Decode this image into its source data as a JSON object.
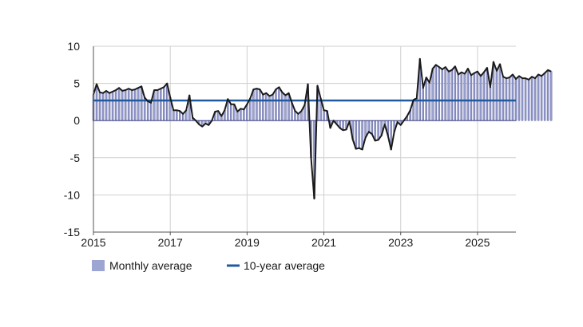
{
  "chart_data": {
    "type": "bar",
    "title": "",
    "xlabel": "",
    "ylabel": "",
    "ylim": [
      -15,
      10
    ],
    "yticks": [
      10,
      5,
      0,
      -5,
      -10,
      -15
    ],
    "xlim": [
      2015.0,
      2026.0
    ],
    "xticks": [
      2015,
      2017,
      2019,
      2021,
      2023,
      2025
    ],
    "grid": "vertical and horizontal light grey gridlines",
    "legend": {
      "placement": "bottom-left",
      "monthly_label": "Monthly average",
      "ten_year_label": "10-year average"
    },
    "colors": {
      "monthly_fill": "#9da5d3",
      "monthly_stroke": "#2a2d7a",
      "monthly_line": "#1a1a1a",
      "ten_year": "#1f5b9e",
      "grid": "#cfcfcf",
      "axis": "#555555"
    },
    "ten_year_average": 2.7,
    "monthly_start": 2015.0,
    "monthly_step": 0.0833333,
    "monthly_values": [
      3.5,
      4.9,
      3.8,
      3.7,
      4.0,
      3.7,
      3.9,
      4.1,
      4.4,
      4.0,
      4.1,
      4.3,
      4.1,
      4.2,
      4.4,
      4.6,
      3.1,
      2.6,
      2.4,
      4.1,
      4.1,
      4.3,
      4.5,
      5.0,
      3.1,
      1.4,
      1.4,
      1.3,
      0.9,
      1.4,
      3.4,
      0.4,
      0.0,
      -0.5,
      -0.8,
      -0.4,
      -0.6,
      0.0,
      1.2,
      1.3,
      0.6,
      1.4,
      2.9,
      2.2,
      2.2,
      1.2,
      1.6,
      1.5,
      2.2,
      3.0,
      4.2,
      4.3,
      4.2,
      3.5,
      3.7,
      3.3,
      3.5,
      4.2,
      4.5,
      3.8,
      3.4,
      3.7,
      2.4,
      1.3,
      0.9,
      1.3,
      2.1,
      4.9,
      -5.0,
      -10.5,
      4.7,
      3.0,
      1.4,
      1.3,
      -1.0,
      0.0,
      -0.5,
      -1.0,
      -1.3,
      -1.2,
      -0.1,
      -2.5,
      -3.8,
      -3.7,
      -3.9,
      -2.3,
      -1.5,
      -1.8,
      -2.7,
      -2.6,
      -2.0,
      -0.5,
      -2.0,
      -3.9,
      -1.5,
      -0.2,
      -0.6,
      0.0,
      0.6,
      1.4,
      2.8,
      3.0,
      8.3,
      4.4,
      5.8,
      5.1,
      7.0,
      7.5,
      7.2,
      6.9,
      7.2,
      6.6,
      6.8,
      7.3,
      6.2,
      6.5,
      6.3,
      7.0,
      6.1,
      6.4,
      6.6,
      6.0,
      6.5,
      7.1,
      4.5,
      7.9,
      6.7,
      7.6,
      5.9,
      5.7,
      5.8,
      6.2,
      5.6,
      6.0,
      5.7,
      5.7,
      5.5,
      5.9,
      5.7,
      6.2,
      6.0,
      6.4,
      6.8,
      6.6
    ]
  }
}
